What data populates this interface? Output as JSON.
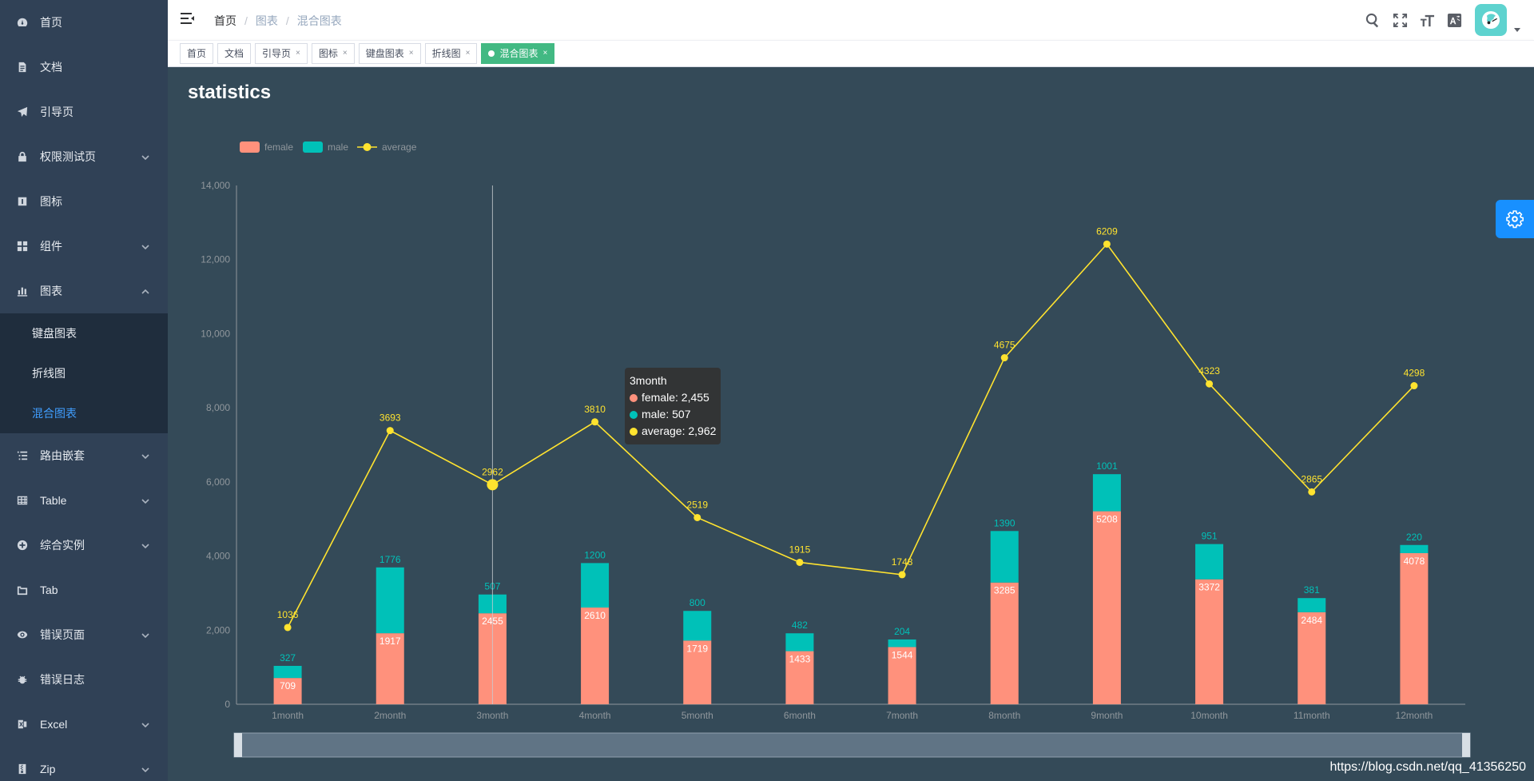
{
  "sidebar": {
    "items": [
      {
        "label": "首页",
        "icon": "dashboard-icon",
        "arrow": false
      },
      {
        "label": "文档",
        "icon": "document-icon",
        "arrow": false
      },
      {
        "label": "引导页",
        "icon": "guide-icon",
        "arrow": false
      },
      {
        "label": "权限测试页",
        "icon": "lock-icon",
        "arrow": true
      },
      {
        "label": "图标",
        "icon": "icon-icon",
        "arrow": false
      },
      {
        "label": "组件",
        "icon": "component-icon",
        "arrow": true
      },
      {
        "label": "图表",
        "icon": "chart-icon",
        "arrow": true,
        "expanded": true
      }
    ],
    "charts_submenu": [
      {
        "label": "键盘图表",
        "active": false
      },
      {
        "label": "折线图",
        "active": false
      },
      {
        "label": "混合图表",
        "active": true
      }
    ],
    "items_after": [
      {
        "label": "路由嵌套",
        "icon": "nested-icon",
        "arrow": true
      },
      {
        "label": "Table",
        "icon": "table-icon",
        "arrow": true
      },
      {
        "label": "综合实例",
        "icon": "example-icon",
        "arrow": true
      },
      {
        "label": "Tab",
        "icon": "tab-icon",
        "arrow": false
      },
      {
        "label": "错误页面",
        "icon": "error404-icon",
        "arrow": true
      },
      {
        "label": "错误日志",
        "icon": "bug-icon",
        "arrow": false
      },
      {
        "label": "Excel",
        "icon": "excel-icon",
        "arrow": true
      },
      {
        "label": "Zip",
        "icon": "zip-icon",
        "arrow": true
      }
    ]
  },
  "navbar": {
    "breadcrumb": [
      "首页",
      "图表",
      "混合图表"
    ]
  },
  "tags": [
    {
      "label": "首页",
      "closable": false,
      "active": false
    },
    {
      "label": "文档",
      "closable": false,
      "active": false
    },
    {
      "label": "引导页",
      "closable": true,
      "active": false
    },
    {
      "label": "图标",
      "closable": true,
      "active": false
    },
    {
      "label": "键盘图表",
      "closable": true,
      "active": false
    },
    {
      "label": "折线图",
      "closable": true,
      "active": false
    },
    {
      "label": "混合图表",
      "closable": true,
      "active": true
    }
  ],
  "tag_close_glyph": "×",
  "watermark": "https://blog.csdn.net/qq_41356250",
  "colors": {
    "female": "#ff917c",
    "male": "#00c1b8",
    "average": "#ffe32f",
    "axis_text": "#90979c",
    "accent": "#409eff",
    "tag_active": "#42b983"
  },
  "chart_data": {
    "type": "bar",
    "title": "statistics",
    "categories": [
      "1month",
      "2month",
      "3month",
      "4month",
      "5month",
      "6month",
      "7month",
      "8month",
      "9month",
      "10month",
      "11month",
      "12month"
    ],
    "series": [
      {
        "name": "female",
        "type": "bar",
        "stack": "total",
        "values": [
          709,
          1917,
          2455,
          2610,
          1719,
          1433,
          1544,
          3285,
          5208,
          3372,
          2484,
          4078
        ]
      },
      {
        "name": "male",
        "type": "bar",
        "stack": "total",
        "values": [
          327,
          1776,
          507,
          1200,
          800,
          482,
          204,
          1390,
          1001,
          951,
          381,
          220
        ]
      },
      {
        "name": "average",
        "type": "line",
        "values": [
          1036,
          3693,
          2962,
          3810,
          2519,
          1915,
          1748,
          4675,
          6209,
          4323,
          2865,
          4298
        ]
      }
    ],
    "y_ticks": [
      "0",
      "2,000",
      "4,000",
      "6,000",
      "8,000",
      "10,000",
      "12,000",
      "14,000"
    ],
    "ylim": [
      0,
      14000
    ],
    "line_scale": 2,
    "legend": [
      "female",
      "male",
      "average"
    ],
    "legend_position": "top-left",
    "grid": false,
    "highlighted_category": "3month",
    "tooltip": {
      "title": "3month",
      "rows": [
        {
          "series": "female",
          "text": "female: 2,455"
        },
        {
          "series": "male",
          "text": "male: 507"
        },
        {
          "series": "average",
          "text": "average: 2,962"
        }
      ]
    }
  }
}
